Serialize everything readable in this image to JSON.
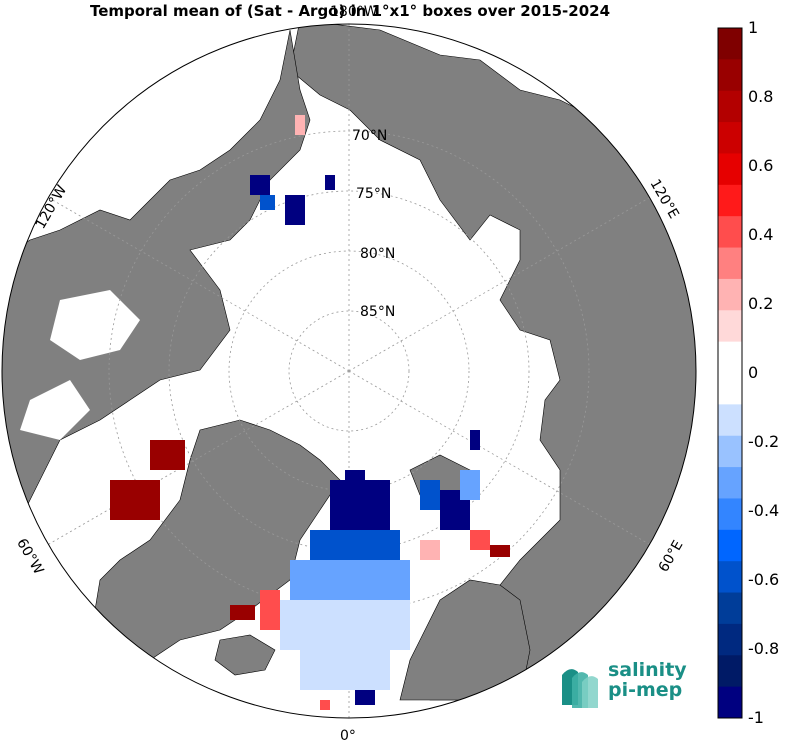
{
  "title": "Temporal mean of (Sat - Argo) in 1°x1° boxes over 2015-2024",
  "map": {
    "projection": "north polar stereographic",
    "lat_labels": [
      "70°N",
      "75°N",
      "80°N",
      "85°N"
    ],
    "lon_labels": {
      "top": "180°W",
      "left_upper": "120°W",
      "right_upper": "120°E",
      "left_lower": "60°W",
      "right_lower": "60°E",
      "bottom": "0°"
    },
    "colors": {
      "land": "#808080",
      "ice": "#ffffff",
      "frame": "#000000"
    }
  },
  "colorbar": {
    "ticks": [
      "1",
      "0.8",
      "0.6",
      "0.4",
      "0.2",
      "0",
      "-0.2",
      "-0.4",
      "-0.6",
      "-0.8",
      "-1"
    ],
    "colors": [
      "#7f0000",
      "#990000",
      "#b30000",
      "#cc0000",
      "#e60000",
      "#ff1a1a",
      "#ff4d4d",
      "#ff8080",
      "#ffb3b3",
      "#ffd9d9",
      "#ffffff",
      "#ffffff",
      "#cce0ff",
      "#99c2ff",
      "#66a3ff",
      "#3385ff",
      "#0066ff",
      "#0052cc",
      "#003d99",
      "#002980",
      "#001a66",
      "#000080"
    ]
  },
  "logo": {
    "line1": "salinity",
    "line2": "pi-mep"
  }
}
